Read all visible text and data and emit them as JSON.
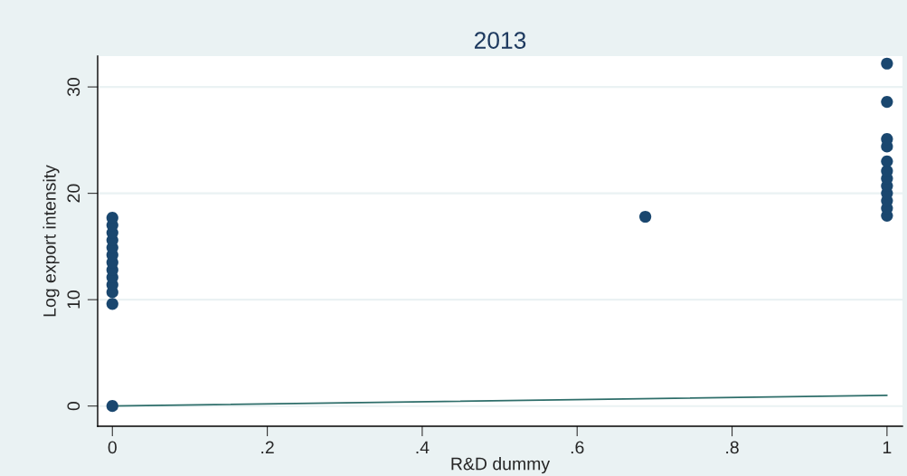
{
  "chart_data": {
    "type": "scatter",
    "title": "2013",
    "xlabel": "R&D dummy",
    "ylabel": "Log export intensity",
    "xlim": [
      -0.019,
      1.02
    ],
    "ylim": [
      -1.9,
      32.9
    ],
    "xticks": [
      0,
      {
        "value": 0.2,
        "label": ".2"
      },
      {
        "value": 0.4,
        "label": ".4"
      },
      {
        "value": 0.6,
        "label": ".6"
      },
      {
        "value": 0.8,
        "label": ".8"
      },
      1
    ],
    "yticks": [
      0,
      10,
      20,
      30
    ],
    "grid": "y",
    "series": [
      {
        "color": "#1a476f",
        "marker": "circle",
        "x": [
          0,
          0,
          0,
          0,
          0,
          0,
          0,
          0,
          0,
          0,
          0,
          0,
          0,
          0.688,
          1,
          1,
          1,
          1,
          1,
          1,
          1,
          1,
          1,
          1,
          1,
          1
        ],
        "values": [
          0,
          9.6,
          10.7,
          11.4,
          12.1,
          12.8,
          13.5,
          14.2,
          14.9,
          15.6,
          16.3,
          17.0,
          17.7,
          17.8,
          17.9,
          18.6,
          19.3,
          20.0,
          20.7,
          21.4,
          22.1,
          23.0,
          24.4,
          25.1,
          28.6,
          32.2
        ]
      },
      {
        "type": "line",
        "color": "#2e6e6a",
        "x": [
          0,
          1
        ],
        "values": [
          0,
          1.0
        ]
      }
    ]
  }
}
